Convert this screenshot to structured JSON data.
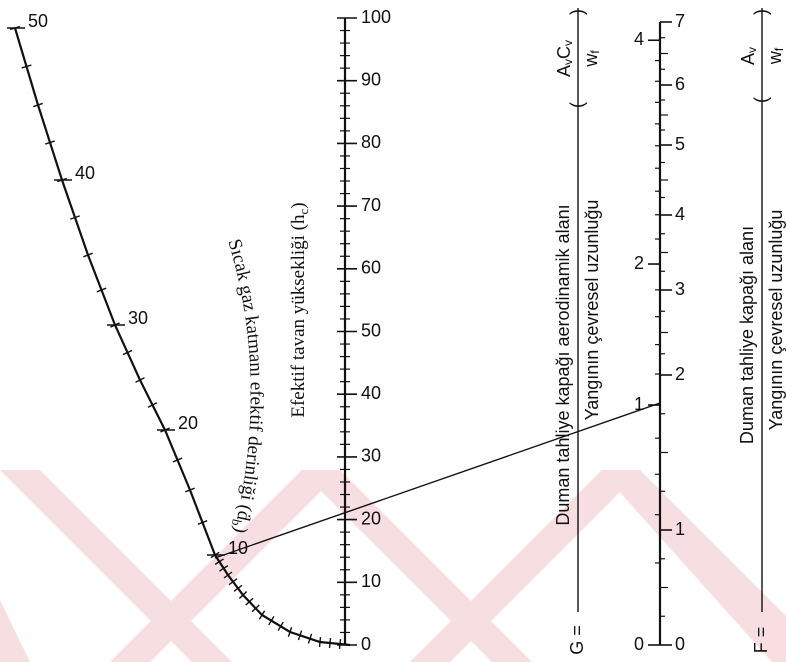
{
  "scales": {
    "gas_layer_depth": {
      "title": {
        "text": "Sıcak gaz katmanı efektif derinliği (ḋ",
        "sub": "b",
        "close": ")"
      },
      "ticks": [
        10,
        20,
        30,
        40,
        50
      ]
    },
    "ceiling_height": {
      "title": {
        "text": "Efektif tavan yüksekliği (h",
        "sub": "c",
        "close": ")"
      },
      "ticks": [
        0,
        10,
        20,
        30,
        40,
        50,
        60,
        70,
        80,
        90,
        100
      ]
    },
    "g_scale": {
      "ticks": [
        0,
        1,
        2,
        4
      ]
    },
    "f_scale": {
      "ticks": [
        0,
        1,
        2,
        3,
        4,
        5,
        6,
        7
      ]
    }
  },
  "formulas": {
    "g": {
      "lhs": "G =",
      "numerator": "Duman tahliye kapağı aerodinamik alanı",
      "denominator": "Yangının çevresel uzunluğu",
      "ratio": {
        "numerator": [
          {
            "base": "A",
            "sub": "v"
          },
          {
            "base": "C",
            "sub": "v"
          }
        ],
        "denominator": {
          "base": "w",
          "sub": "f"
        }
      }
    },
    "f": {
      "lhs": "F =",
      "numerator": "Duman tahliye kapağı alanı",
      "denominator": "Yangının çevresel uzunluğu",
      "ratio": {
        "numerator": [
          {
            "base": "A",
            "sub": "v"
          }
        ],
        "denominator": {
          "base": "w",
          "sub": "f"
        }
      }
    }
  }
}
